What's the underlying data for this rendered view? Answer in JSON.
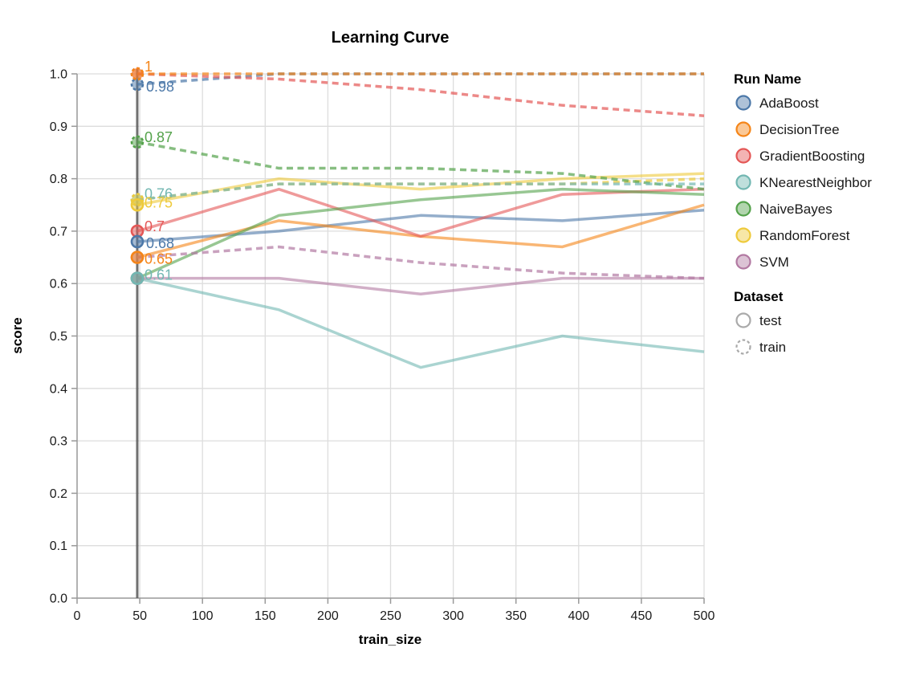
{
  "title": "Learning Curve",
  "axes": {
    "x": {
      "label": "train_size",
      "ticks": [
        0,
        50,
        100,
        150,
        200,
        250,
        300,
        350,
        400,
        450,
        500
      ],
      "range": [
        0,
        500
      ]
    },
    "y": {
      "label": "score",
      "ticks": [
        0.0,
        0.1,
        0.2,
        0.3,
        0.4,
        0.5,
        0.6,
        0.7,
        0.8,
        0.9,
        1.0
      ],
      "range": [
        0.0,
        1.0
      ]
    }
  },
  "legend": {
    "run_name_title": "Run Name",
    "dataset_title": "Dataset",
    "dataset_items": [
      {
        "label": "test",
        "style": "solid"
      },
      {
        "label": "train",
        "style": "dashed"
      }
    ]
  },
  "colors": {
    "grid": "#dddddd",
    "axis": "#999999",
    "rule": "#606060",
    "legend_symbol": "#aaaaaa"
  },
  "chart_data": {
    "type": "line",
    "title": "Learning Curve",
    "xlabel": "train_size",
    "ylabel": "score",
    "xlim": [
      0,
      500
    ],
    "ylim": [
      0.0,
      1.0
    ],
    "grid": true,
    "legend_position": "right",
    "rule_x": 48,
    "x": [
      48,
      161,
      274,
      387,
      500
    ],
    "series": [
      {
        "name": "AdaBoost",
        "color": "#4c78a8",
        "test": [
          0.68,
          0.7,
          0.73,
          0.72,
          0.74
        ],
        "train": [
          0.98,
          1.0,
          1.0,
          1.0,
          1.0
        ],
        "label_test": {
          "text": "0.68",
          "dx": 11,
          "dy": 3
        },
        "label_train": {
          "text": "0.98",
          "dx": 11,
          "dy": 4
        }
      },
      {
        "name": "DecisionTree",
        "color": "#f58518",
        "test": [
          0.65,
          0.72,
          0.69,
          0.67,
          0.75
        ],
        "train": [
          1.0,
          1.0,
          1.0,
          1.0,
          1.0
        ],
        "label_test": {
          "text": "0.65",
          "dx": 9,
          "dy": 3
        },
        "label_train": {
          "text": "1",
          "dx": 9,
          "dy": -8
        }
      },
      {
        "name": "GradientBoosting",
        "color": "#e45756",
        "test": [
          0.7,
          0.78,
          0.69,
          0.77,
          0.78
        ],
        "train": [
          1.0,
          0.99,
          0.97,
          0.94,
          0.92
        ],
        "label_test": {
          "text": "0.7",
          "dx": 9,
          "dy": -5
        },
        "label_train": null
      },
      {
        "name": "KNearestNeighbor",
        "color": "#72b7b2",
        "test": [
          0.61,
          0.55,
          0.44,
          0.5,
          0.47
        ],
        "train": [
          0.76,
          0.79,
          0.79,
          0.79,
          0.79
        ],
        "label_test": {
          "text": "0.61",
          "dx": 9,
          "dy": -3
        },
        "label_train": {
          "text": "0.76",
          "dx": 9,
          "dy": -6
        }
      },
      {
        "name": "NaiveBayes",
        "color": "#54a24b",
        "test": [
          0.61,
          0.73,
          0.76,
          0.78,
          0.77
        ],
        "train": [
          0.87,
          0.82,
          0.82,
          0.81,
          0.78
        ],
        "label_test": null,
        "label_train": {
          "text": "0.87",
          "dx": 9,
          "dy": -5
        }
      },
      {
        "name": "RandomForest",
        "color": "#eeca3b",
        "test": [
          0.75,
          0.8,
          0.78,
          0.8,
          0.81
        ],
        "train": [
          0.76,
          0.79,
          0.79,
          0.79,
          0.8
        ],
        "label_test": {
          "text": "0.75",
          "dx": 9,
          "dy": -2
        },
        "label_train": null
      },
      {
        "name": "SVM",
        "color": "#b279a2",
        "test": [
          0.61,
          0.61,
          0.58,
          0.61,
          0.61
        ],
        "train": [
          0.65,
          0.67,
          0.64,
          0.62,
          0.61
        ],
        "label_test": null,
        "label_train": null
      }
    ]
  }
}
